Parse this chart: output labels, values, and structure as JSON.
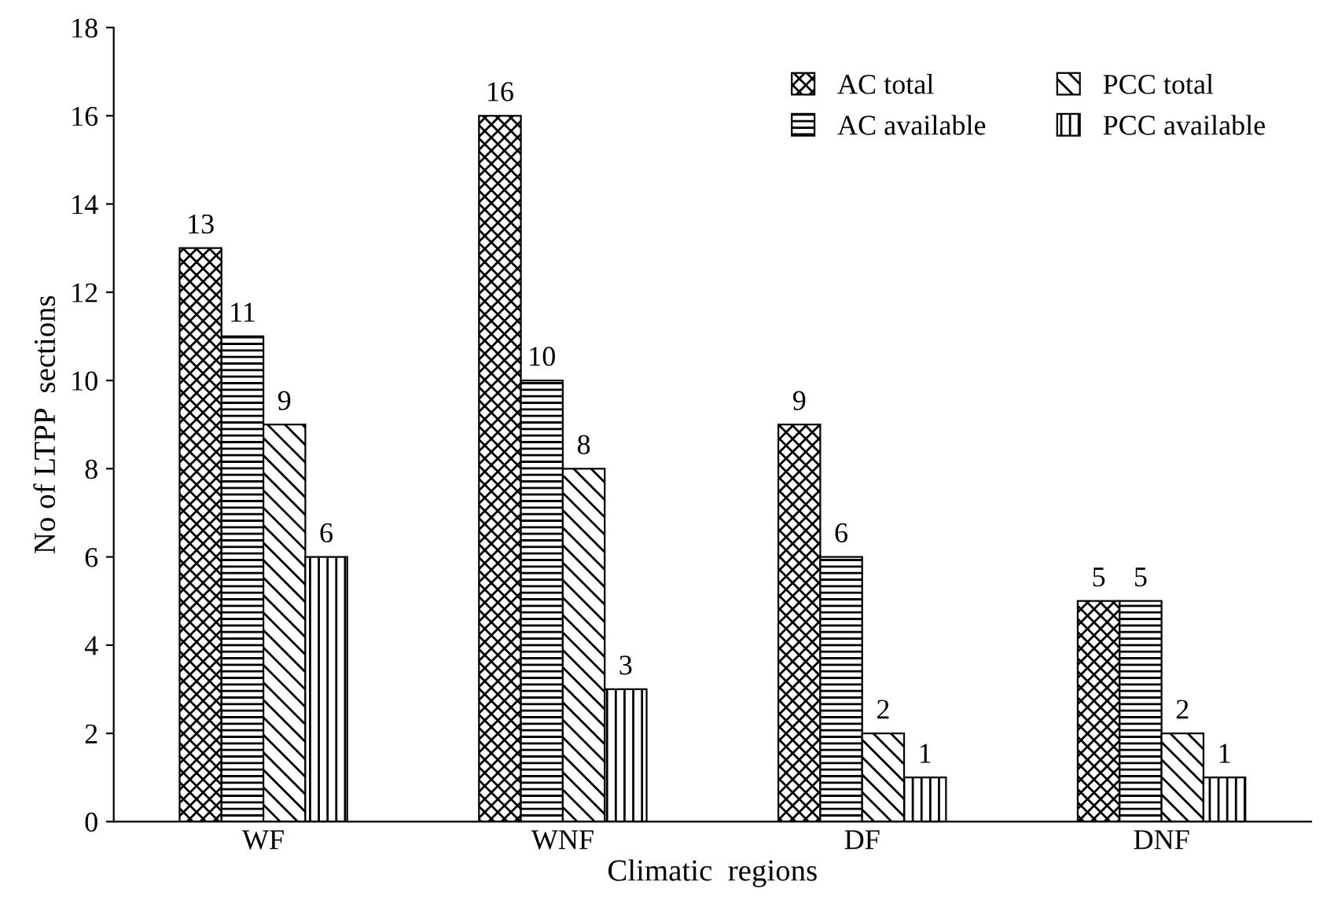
{
  "chart_data": {
    "type": "bar",
    "xlabel": "Climatic  regions",
    "ylabel": "No of LTPP  sections",
    "categories": [
      "WF",
      "WNF",
      "DF",
      "DNF"
    ],
    "series": [
      {
        "name": "AC total",
        "color": "#000000",
        "values": [
          13,
          16,
          9,
          5
        ]
      },
      {
        "name": "AC available",
        "color": "#000000",
        "values": [
          11,
          10,
          6,
          5
        ]
      },
      {
        "name": "PCC total",
        "color": "#000000",
        "values": [
          9,
          8,
          2,
          2
        ]
      },
      {
        "name": "PCC available",
        "color": "#000000",
        "values": [
          6,
          3,
          1,
          1
        ]
      }
    ],
    "ylim": [
      0,
      18
    ],
    "yticks": [
      0,
      2,
      4,
      6,
      8,
      10,
      12,
      14,
      16,
      18
    ],
    "data_labels": true,
    "legend": "top right"
  }
}
